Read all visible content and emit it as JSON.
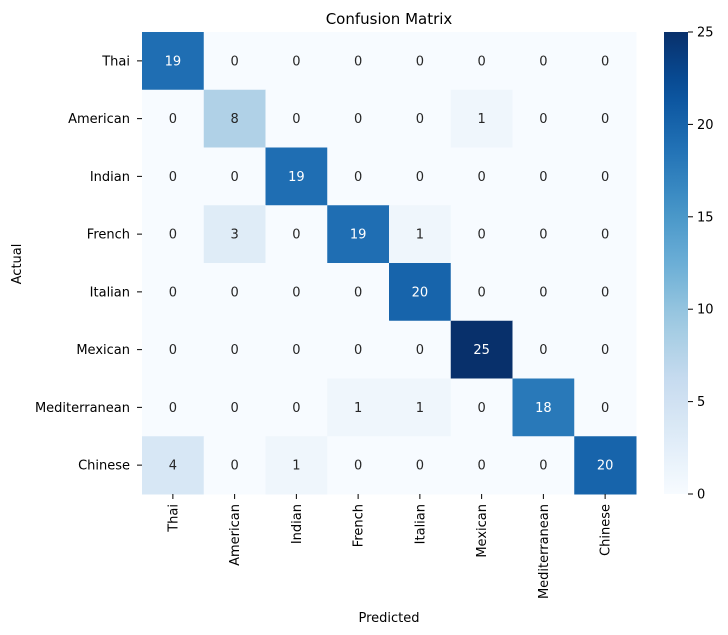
{
  "chart_data": {
    "type": "heatmap",
    "title": "Confusion Matrix",
    "xlabel": "Predicted",
    "ylabel": "Actual",
    "x_categories": [
      "Thai",
      "American",
      "Indian",
      "French",
      "Italian",
      "Mexican",
      "Mediterranean",
      "Chinese"
    ],
    "y_categories": [
      "Thai",
      "American",
      "Indian",
      "French",
      "Italian",
      "Mexican",
      "Mediterranean",
      "Chinese"
    ],
    "values": [
      [
        19,
        0,
        0,
        0,
        0,
        0,
        0,
        0
      ],
      [
        0,
        8,
        0,
        0,
        0,
        1,
        0,
        0
      ],
      [
        0,
        0,
        19,
        0,
        0,
        0,
        0,
        0
      ],
      [
        0,
        3,
        0,
        19,
        1,
        0,
        0,
        0
      ],
      [
        0,
        0,
        0,
        0,
        20,
        0,
        0,
        0
      ],
      [
        0,
        0,
        0,
        0,
        0,
        25,
        0,
        0
      ],
      [
        0,
        0,
        0,
        1,
        1,
        0,
        18,
        0
      ],
      [
        4,
        0,
        1,
        0,
        0,
        0,
        0,
        20
      ]
    ],
    "colormap": "Blues",
    "colorbar": {
      "min": 0,
      "max": 25,
      "ticks": [
        0,
        5,
        10,
        15,
        20,
        25
      ]
    },
    "annotations": true
  }
}
